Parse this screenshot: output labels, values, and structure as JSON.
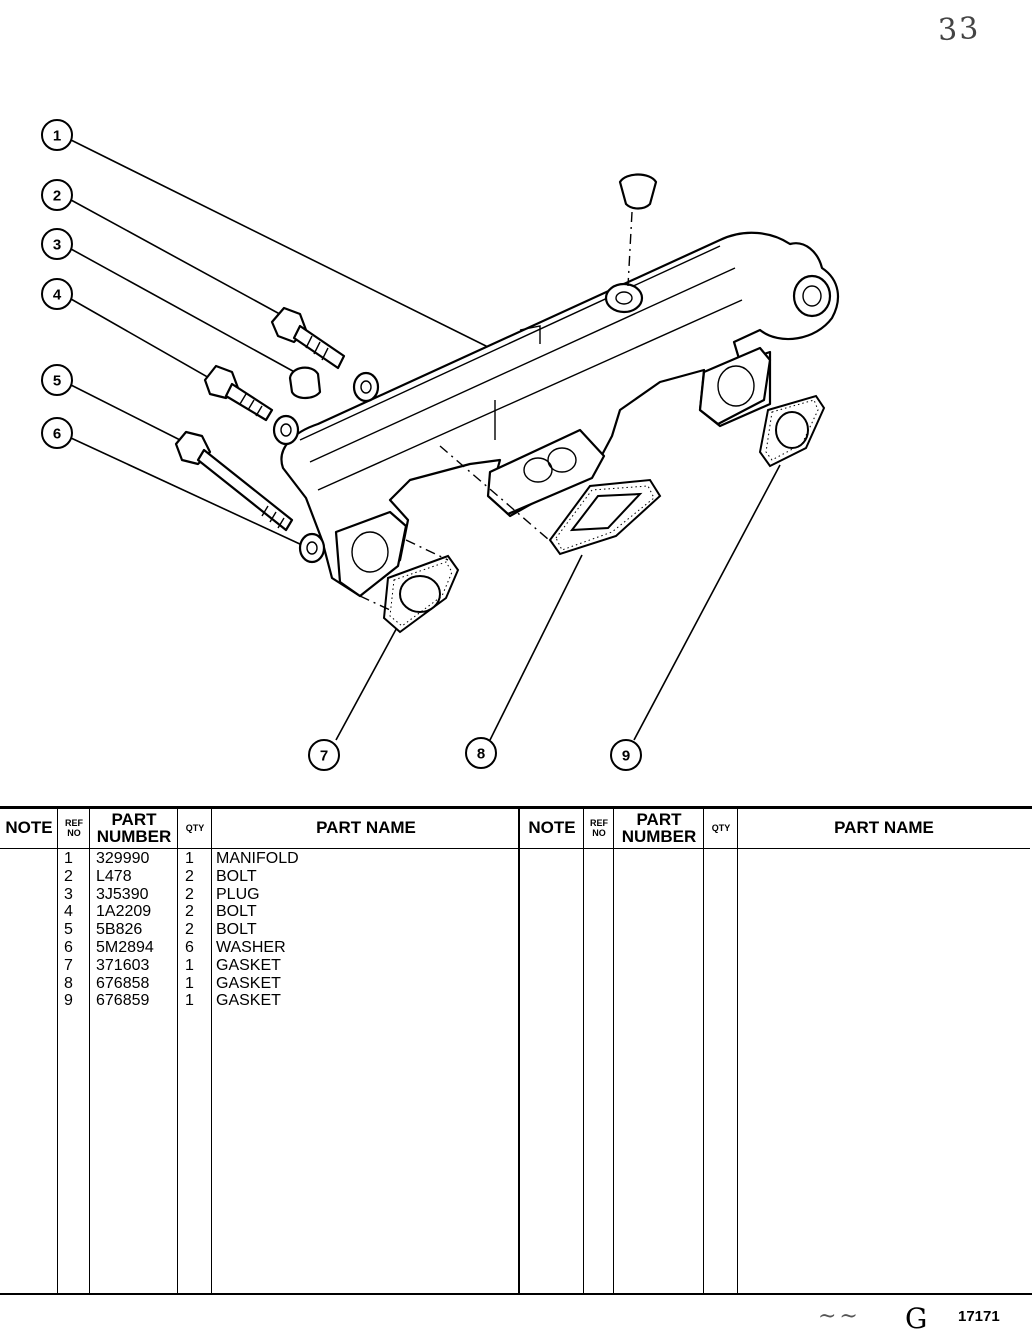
{
  "page": {
    "corner_number": "33",
    "footer_code": "17171",
    "footer_mark": "G",
    "footer_signature": "~ ~"
  },
  "callouts": [
    "1",
    "2",
    "3",
    "4",
    "5",
    "6",
    "7",
    "8",
    "9"
  ],
  "table": {
    "headers": {
      "note": "NOTE",
      "ref_no_top": "REF",
      "ref_no_bottom": "NO",
      "part_number_top": "PART",
      "part_number_bottom": "NUMBER",
      "qty": "QTY",
      "part_name": "PART NAME"
    },
    "rows": [
      {
        "note": "",
        "ref": "1",
        "part_number": "329990",
        "qty": "1",
        "name": "MANIFOLD"
      },
      {
        "note": "",
        "ref": "2",
        "part_number": "L478",
        "qty": "2",
        "name": "BOLT"
      },
      {
        "note": "",
        "ref": "3",
        "part_number": "3J5390",
        "qty": "2",
        "name": "PLUG"
      },
      {
        "note": "",
        "ref": "4",
        "part_number": "1A2209",
        "qty": "2",
        "name": "BOLT"
      },
      {
        "note": "",
        "ref": "5",
        "part_number": "5B826",
        "qty": "2",
        "name": "BOLT"
      },
      {
        "note": "",
        "ref": "6",
        "part_number": "5M2894",
        "qty": "6",
        "name": "WASHER"
      },
      {
        "note": "",
        "ref": "7",
        "part_number": "371603",
        "qty": "1",
        "name": "GASKET"
      },
      {
        "note": "",
        "ref": "8",
        "part_number": "676858",
        "qty": "1",
        "name": "GASKET"
      },
      {
        "note": "",
        "ref": "9",
        "part_number": "676859",
        "qty": "1",
        "name": "GASKET"
      }
    ]
  }
}
